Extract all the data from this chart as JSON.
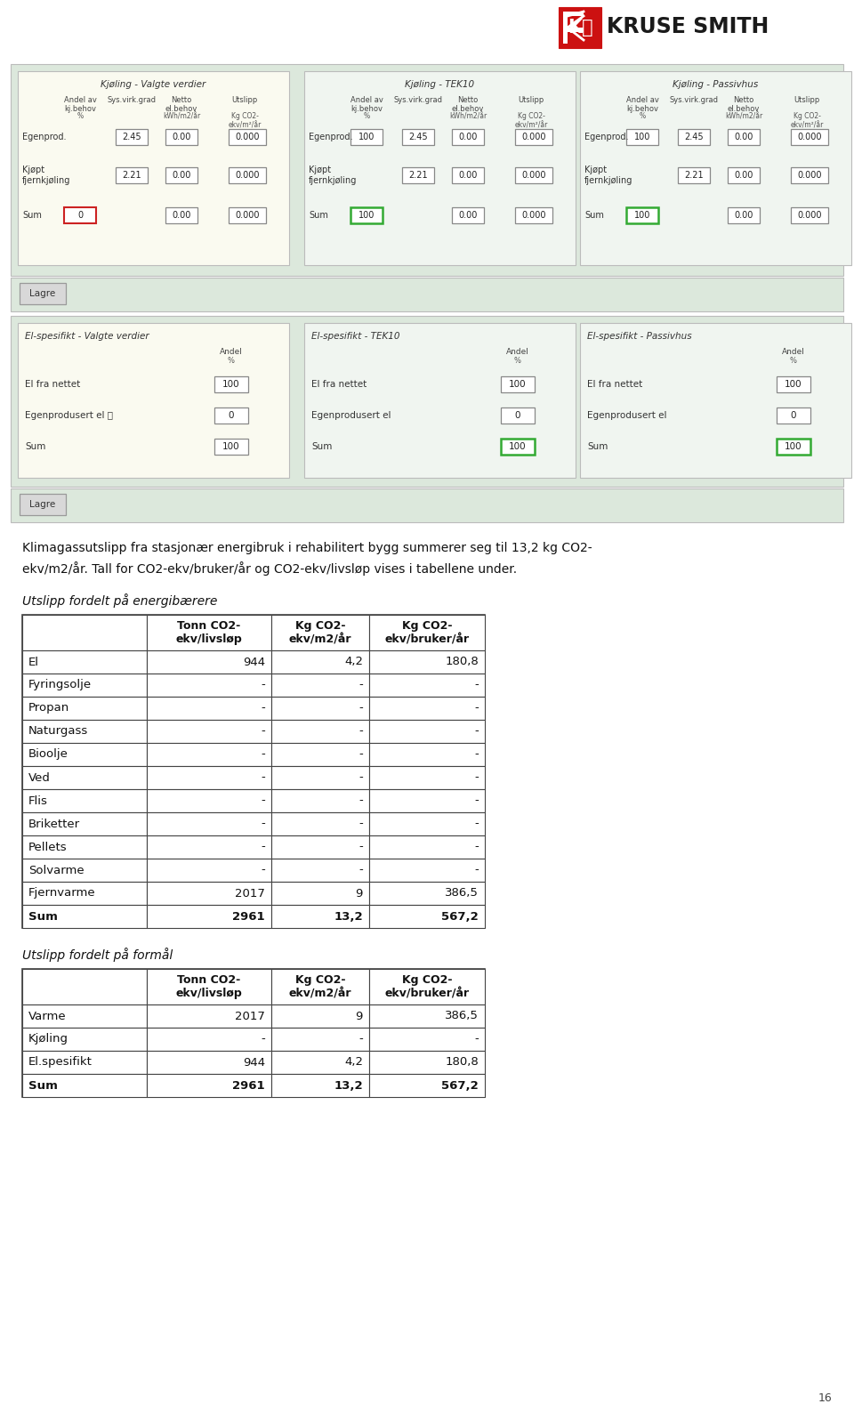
{
  "logo_text": "KRUSE SMITH",
  "page_number": "16",
  "kjøling_panels": [
    {
      "title": "Kjøling - Valgte verdier",
      "bg_color": "#fafaf0",
      "border_color": "#cccccc",
      "rows": [
        {
          "label": "Egenprod.",
          "andel": "",
          "sys_vir": "2.45",
          "netto": "0.00",
          "utslipp": "0.000",
          "andel_red": true
        },
        {
          "label": "Kjøpt\nfjernkjøling",
          "andel": "",
          "sys_vir": "2.21",
          "netto": "0.00",
          "utslipp": "0.000",
          "andel_red": false
        },
        {
          "label": "Sum",
          "andel": "0",
          "sys_vir": "",
          "netto": "0.00",
          "utslipp": "0.000",
          "andel_red": true,
          "andel_green": false
        }
      ]
    },
    {
      "title": "Kjøling - TEK10",
      "bg_color": "#f0f5f0",
      "border_color": "#aaaaaa",
      "rows": [
        {
          "label": "Egenprod.",
          "andel": "100",
          "sys_vir": "2.45",
          "netto": "0.00",
          "utslipp": "0.000",
          "andel_red": false
        },
        {
          "label": "Kjøpt\nfjernkjøling",
          "andel": "",
          "sys_vir": "2.21",
          "netto": "0.00",
          "utslipp": "0.000",
          "andel_red": false
        },
        {
          "label": "Sum",
          "andel": "100",
          "sys_vir": "",
          "netto": "0.00",
          "utslipp": "0.000",
          "andel_green": true
        }
      ]
    },
    {
      "title": "Kjøling - Passivhus",
      "bg_color": "#f0f5f0",
      "border_color": "#aaaaaa",
      "rows": [
        {
          "label": "Egenprod.",
          "andel": "100",
          "sys_vir": "2.45",
          "netto": "0.00",
          "utslipp": "0.000",
          "andel_red": false
        },
        {
          "label": "Kjøpt\nfjernkjøling",
          "andel": "",
          "sys_vir": "2.21",
          "netto": "0.00",
          "utslipp": "0.000",
          "andel_red": false
        },
        {
          "label": "Sum",
          "andel": "100",
          "sys_vir": "",
          "netto": "0.00",
          "utslipp": "0.000",
          "andel_green": true
        }
      ]
    }
  ],
  "elspesifikt_panels": [
    {
      "title": "El-spesifikt - Valgte verdier",
      "bg_color": "#fafaf0",
      "border_color": "#cccccc",
      "rows": [
        {
          "label": "El fra nettet",
          "andel": "100",
          "green": false
        },
        {
          "label": "Egenprodusert el",
          "andel": "0",
          "info": true,
          "green": false
        },
        {
          "label": "Sum",
          "andel": "100",
          "green": false
        }
      ]
    },
    {
      "title": "El-spesifikt - TEK10",
      "bg_color": "#f0f5f0",
      "border_color": "#aaaaaa",
      "rows": [
        {
          "label": "El fra nettet",
          "andel": "100",
          "green": false
        },
        {
          "label": "Egenprodusert el",
          "andel": "0",
          "info": false,
          "green": false
        },
        {
          "label": "Sum",
          "andel": "100",
          "green": true
        }
      ]
    },
    {
      "title": "El-spesifikt - Passivhus",
      "bg_color": "#f0f5f0",
      "border_color": "#aaaaaa",
      "rows": [
        {
          "label": "El fra nettet",
          "andel": "100",
          "green": false
        },
        {
          "label": "Egenprodusert el",
          "andel": "0",
          "info": false,
          "green": false
        },
        {
          "label": "Sum",
          "andel": "100",
          "green": true
        }
      ]
    }
  ],
  "paragraph_text1": "Klimagassutslipp fra stasjonær energibruk i rehabilitert bygg summerer seg til 13,2 kg CO2-",
  "paragraph_text2": "ekv/m2/år. Tall for CO2-ekv/bruker/år og CO2-ekv/livsløp vises i tabellene under.",
  "table1_title": "Utslipp fordelt på energibærere",
  "table1_col_headers": [
    "",
    "Tonn CO2-\nekv/livsløp",
    "Kg CO2-\nekv/m2/år",
    "Kg CO2-\nekv/bruker/år"
  ],
  "table1_rows": [
    [
      "El",
      "944",
      "4,2",
      "180,8"
    ],
    [
      "Fyringsolje",
      "-",
      "-",
      "-"
    ],
    [
      "Propan",
      "-",
      "-",
      "-"
    ],
    [
      "Naturgass",
      "-",
      "-",
      "-"
    ],
    [
      "Bioolje",
      "-",
      "-",
      "-"
    ],
    [
      "Ved",
      "-",
      "-",
      "-"
    ],
    [
      "Flis",
      "-",
      "-",
      "-"
    ],
    [
      "Briketter",
      "-",
      "-",
      "-"
    ],
    [
      "Pellets",
      "-",
      "-",
      "-"
    ],
    [
      "Solvarme",
      "-",
      "-",
      "-"
    ],
    [
      "Fjernvarme",
      "2017",
      "9",
      "386,5"
    ],
    [
      "Sum",
      "2961",
      "13,2",
      "567,2"
    ]
  ],
  "table2_title": "Utslipp fordelt på formål",
  "table2_col_headers": [
    "",
    "Tonn CO2-\nekv/livsløp",
    "Kg CO2-\nekv/m2/år",
    "Kg CO2-\nekv/bruker/år"
  ],
  "table2_rows": [
    [
      "Varme",
      "2017",
      "9",
      "386,5"
    ],
    [
      "Kjøling",
      "-",
      "-",
      "-"
    ],
    [
      "El.spesifikt",
      "944",
      "4,2",
      "180,8"
    ],
    [
      "Sum",
      "2961",
      "13,2",
      "567,2"
    ]
  ],
  "bg_color": "#ffffff",
  "outer_bg": "#dce8dc",
  "table_line_color": "#444444",
  "lagre_bg": "#d8d8d8",
  "page_num": "16"
}
